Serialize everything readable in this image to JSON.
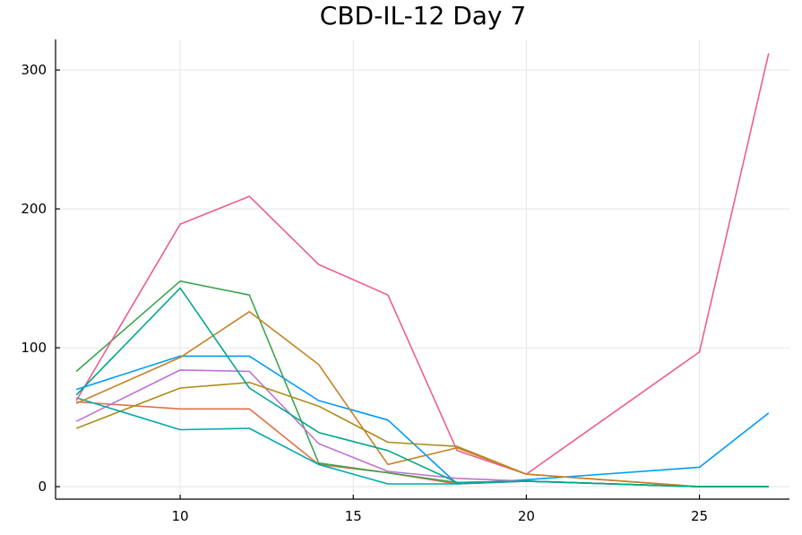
{
  "chart_data": {
    "type": "line",
    "title": "CBD-IL-12 Day 7",
    "xlabel": "",
    "ylabel": "",
    "xlim": [
      6.4,
      27.6
    ],
    "ylim": [
      -9,
      322
    ],
    "xticks": [
      10,
      15,
      20,
      25
    ],
    "yticks": [
      0,
      100,
      200,
      300
    ],
    "grid": true,
    "legend": "none",
    "x": [
      7,
      10,
      12,
      14,
      16,
      18,
      20,
      25,
      27
    ],
    "series": [
      {
        "color": "#009AFA",
        "values": [
          70,
          94,
          94,
          62,
          48,
          2,
          5,
          14,
          53
        ]
      },
      {
        "color": "#E26F46",
        "values": [
          61,
          56,
          56,
          16,
          10,
          2,
          4,
          0,
          0
        ]
      },
      {
        "color": "#3DA44D",
        "values": [
          83,
          148,
          138,
          17,
          10,
          3,
          4,
          0,
          0
        ]
      },
      {
        "color": "#C271D2",
        "values": [
          47,
          84,
          83,
          31,
          11,
          6,
          4,
          0,
          0
        ]
      },
      {
        "color": "#AC8D18",
        "values": [
          42,
          71,
          75,
          58,
          32,
          29,
          9,
          0,
          0
        ]
      },
      {
        "color": "#00A9AD",
        "values": [
          64,
          41,
          42,
          16,
          2,
          2,
          4,
          0,
          0
        ]
      },
      {
        "color": "#ED5D92",
        "values": [
          62,
          189,
          209,
          160,
          138,
          26,
          9,
          97,
          312
        ]
      },
      {
        "color": "#C68225",
        "values": [
          60,
          93,
          126,
          88,
          16,
          28,
          9,
          0,
          0
        ]
      },
      {
        "color": "#00A98D",
        "values": [
          66,
          143,
          71,
          39,
          26,
          3,
          4,
          0,
          0
        ]
      }
    ]
  }
}
